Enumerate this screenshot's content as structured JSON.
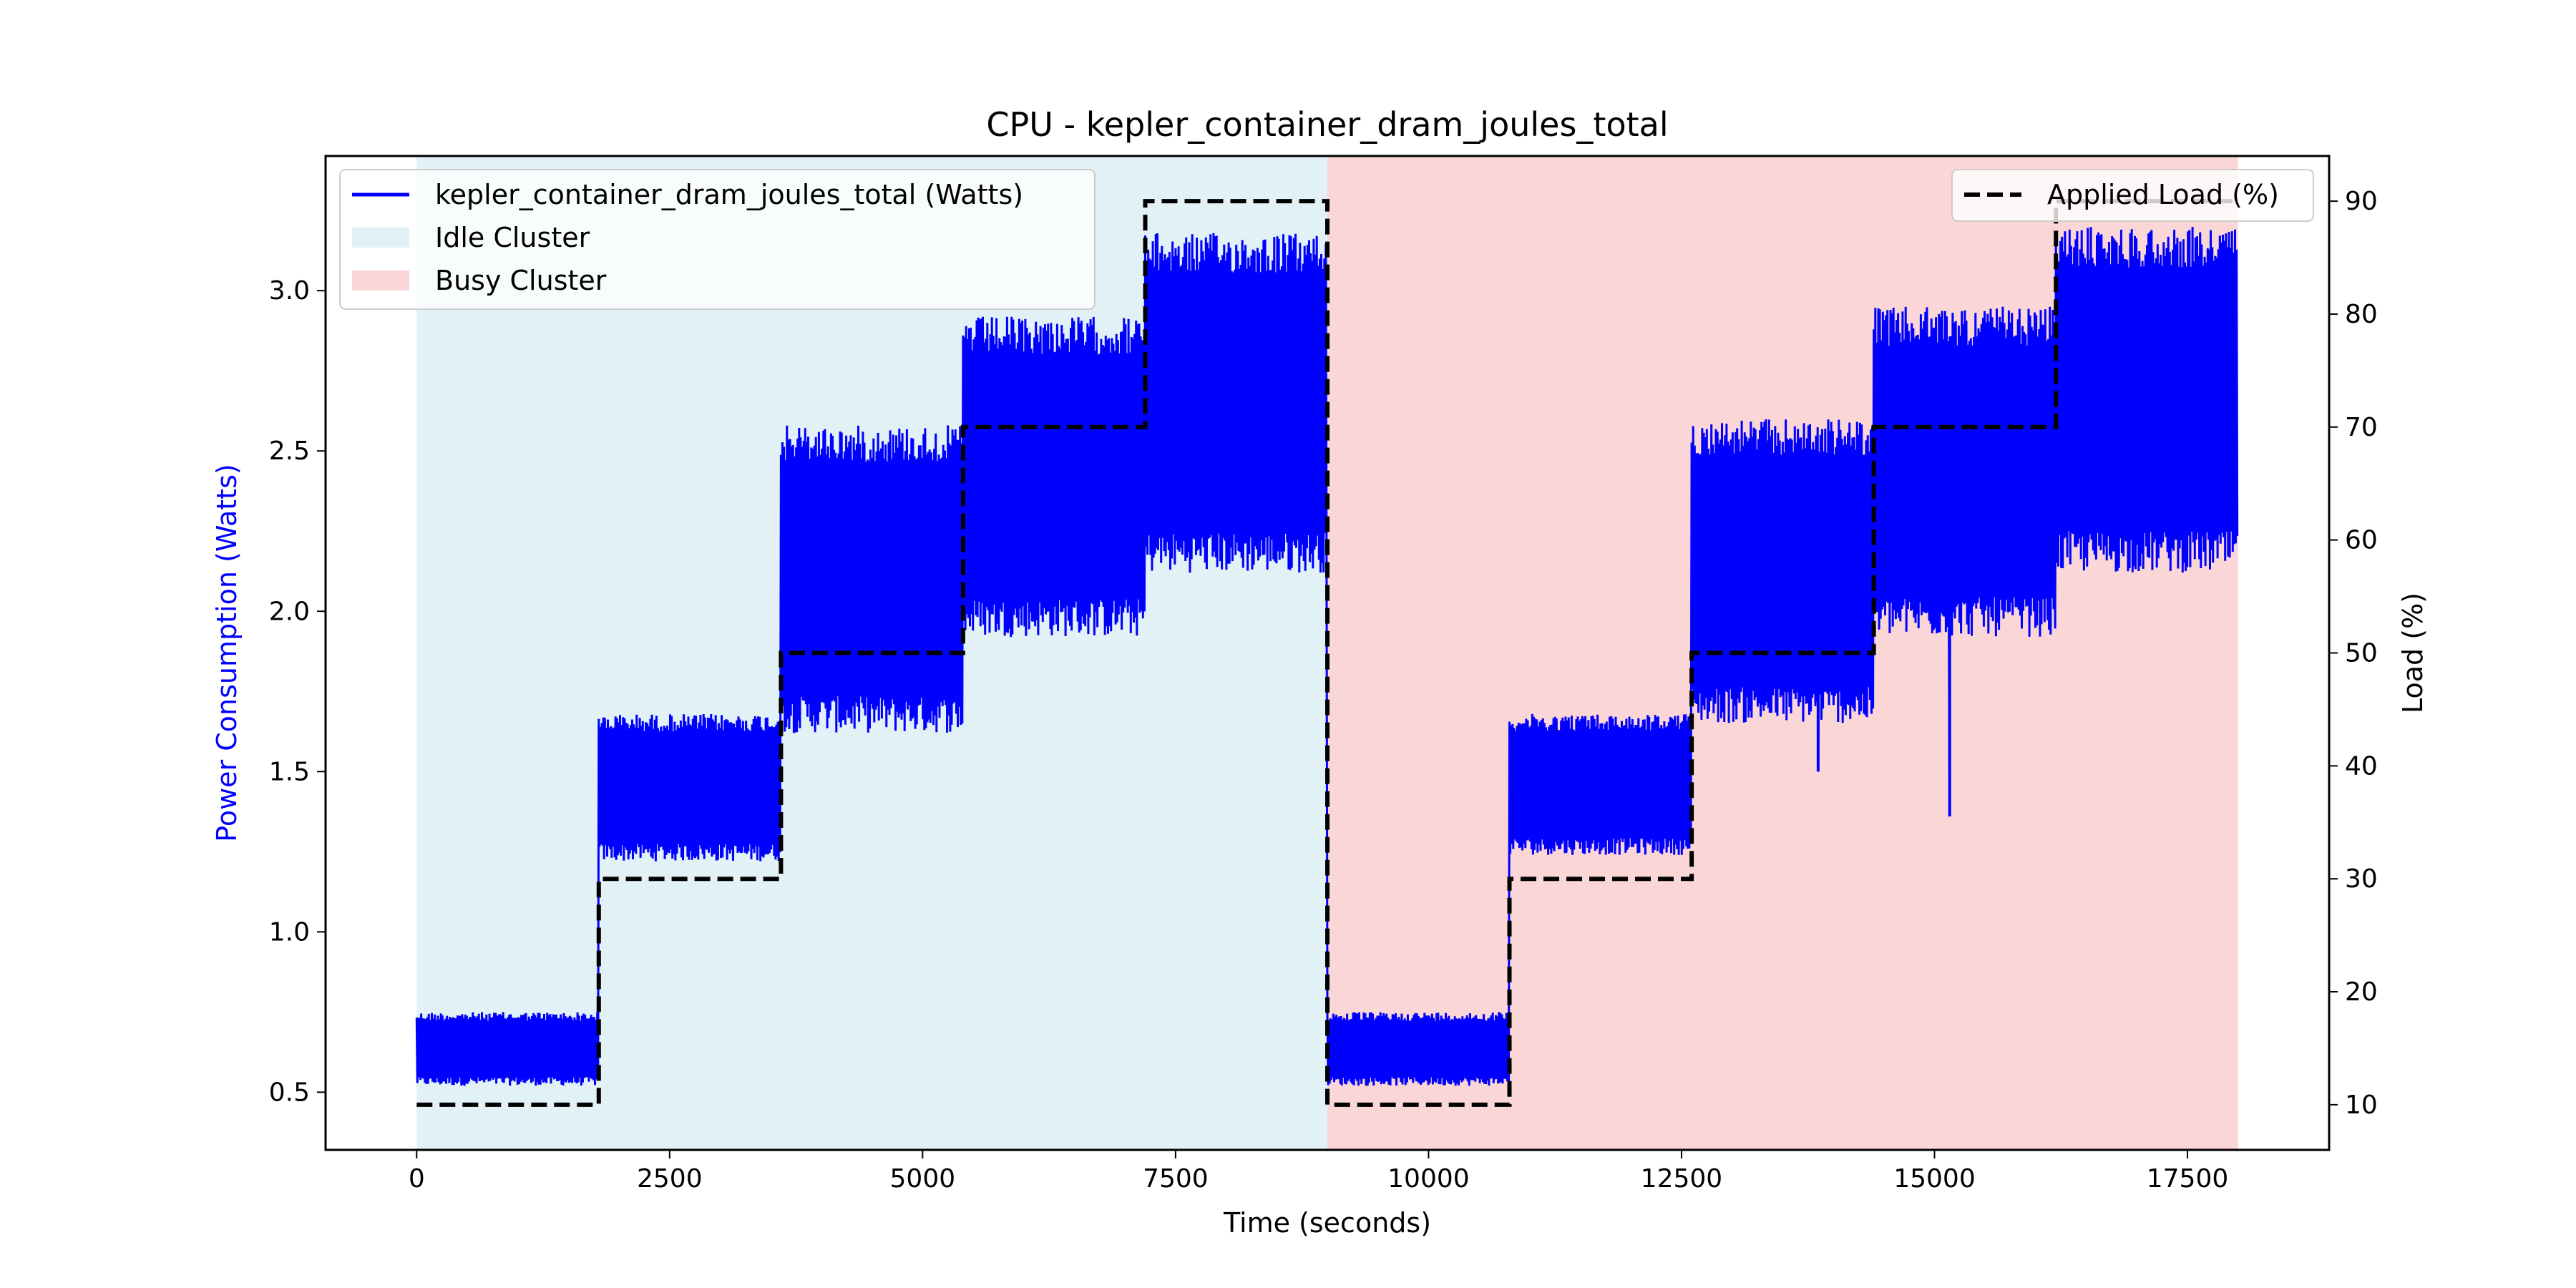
{
  "chart_data": {
    "type": "line",
    "title": "CPU - kepler_container_dram_joules_total",
    "xlabel": "Time (seconds)",
    "ylabel_left": "Power Consumption (Watts)",
    "ylabel_right": "Load (%)",
    "xlim": [
      -900,
      18900
    ],
    "ylim_left": [
      0.32,
      3.42
    ],
    "ylim_right": [
      6,
      94
    ],
    "x_ticks": [
      0,
      2500,
      5000,
      7500,
      10000,
      12500,
      15000,
      17500
    ],
    "y_left_ticks": [
      0.5,
      1.0,
      1.5,
      2.0,
      2.5,
      3.0
    ],
    "y_right_ticks": [
      10,
      20,
      30,
      40,
      50,
      60,
      70,
      80,
      90
    ],
    "grid": false,
    "colors": {
      "power": "#0000ff",
      "load": "#000000",
      "idle_span": "#add8e6",
      "busy_span": "#f08080",
      "ylabel_left": "#0000ff"
    },
    "spans": [
      {
        "name": "Idle Cluster",
        "x": [
          0,
          9000
        ]
      },
      {
        "name": "Busy Cluster",
        "x": [
          9000,
          18000
        ]
      }
    ],
    "series": [
      {
        "name": "kepler_container_dram_joules_total (Watts)",
        "axis": "left",
        "style": "noisy band",
        "segments": [
          {
            "x": [
              0,
              1800
            ],
            "low": 0.52,
            "high": 0.75
          },
          {
            "x": [
              1800,
              3600
            ],
            "low": 1.22,
            "high": 1.68
          },
          {
            "x": [
              3600,
              5400
            ],
            "low": 1.62,
            "high": 2.58
          },
          {
            "x": [
              5400,
              7200
            ],
            "low": 1.92,
            "high": 2.92
          },
          {
            "x": [
              7200,
              9000
            ],
            "low": 2.12,
            "high": 3.18
          },
          {
            "x": [
              9000,
              10800
            ],
            "low": 0.52,
            "high": 0.75
          },
          {
            "x": [
              10800,
              12600
            ],
            "low": 1.24,
            "high": 1.68
          },
          {
            "x": [
              12600,
              14400
            ],
            "low": 1.65,
            "high": 2.6
          },
          {
            "x": [
              14400,
              16200
            ],
            "low": 1.92,
            "high": 2.95
          },
          {
            "x": [
              16200,
              18000
            ],
            "low": 2.12,
            "high": 3.2
          }
        ],
        "spikes": [
          {
            "x": 15150,
            "y": 1.36
          },
          {
            "x": 13850,
            "y": 1.5
          }
        ]
      },
      {
        "name": "Applied Load (%)",
        "axis": "right",
        "style": "dashed step",
        "x": [
          0,
          1800,
          1800,
          3600,
          3600,
          5400,
          5400,
          7200,
          7200,
          9000,
          9000,
          10800,
          10800,
          12600,
          12600,
          14400,
          14400,
          16200,
          16200,
          18000
        ],
        "y": [
          10,
          10,
          30,
          30,
          50,
          50,
          70,
          70,
          90,
          90,
          10,
          10,
          30,
          30,
          50,
          50,
          70,
          70,
          90,
          90
        ]
      }
    ],
    "legend_left": {
      "position": "upper-left",
      "entries": [
        {
          "label": "kepler_container_dram_joules_total (Watts)",
          "kind": "line",
          "color": "#0000ff"
        },
        {
          "label": "Idle Cluster",
          "kind": "patch",
          "color": "#add8e6"
        },
        {
          "label": "Busy Cluster",
          "kind": "patch",
          "color": "#f08080"
        }
      ]
    },
    "legend_right": {
      "position": "upper-right",
      "entries": [
        {
          "label": "Applied Load (%)",
          "kind": "dashed",
          "color": "#000000"
        }
      ]
    }
  }
}
